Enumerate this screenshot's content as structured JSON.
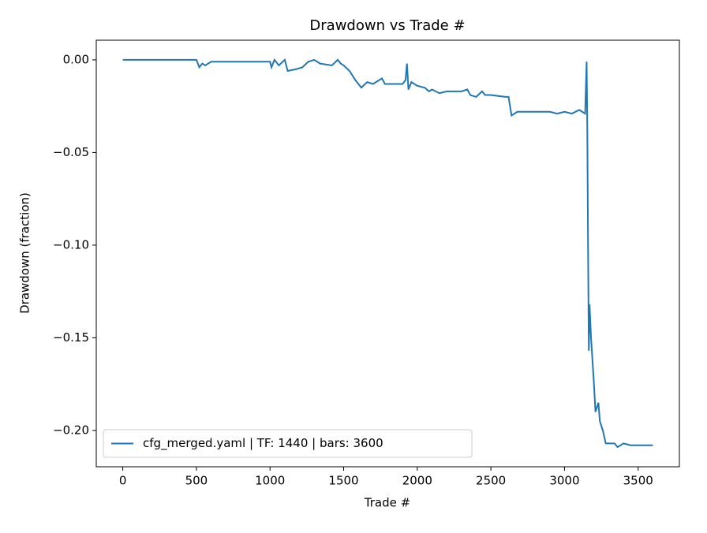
{
  "chart_data": {
    "type": "line",
    "title": "Drawdown vs Trade #",
    "xlabel": "Trade #",
    "ylabel": "Drawdown (fraction)",
    "x": [
      0,
      500,
      520,
      540,
      560,
      600,
      1000,
      1010,
      1030,
      1060,
      1100,
      1120,
      1180,
      1220,
      1260,
      1300,
      1340,
      1420,
      1460,
      1480,
      1500,
      1540,
      1580,
      1620,
      1660,
      1700,
      1740,
      1760,
      1780,
      1900,
      1920,
      1930,
      1940,
      1960,
      2000,
      2050,
      2080,
      2100,
      2150,
      2200,
      2300,
      2340,
      2360,
      2400,
      2440,
      2460,
      2500,
      2600,
      2620,
      2640,
      2680,
      2700,
      2800,
      2900,
      2950,
      3000,
      3050,
      3100,
      3120,
      3140,
      3150,
      3155,
      3160,
      3165,
      3170,
      3180,
      3200,
      3210,
      3230,
      3240,
      3260,
      3280,
      3340,
      3360,
      3400,
      3450,
      3600
    ],
    "series": [
      {
        "name": "cfg_merged.yaml | TF: 1440 | bars: 3600",
        "color": "#1f77b4",
        "values": [
          0,
          0,
          -0.004,
          -0.002,
          -0.003,
          -0.001,
          -0.001,
          -0.004,
          0,
          -0.003,
          0,
          -0.006,
          -0.005,
          -0.004,
          -0.001,
          0,
          -0.002,
          -0.003,
          0,
          -0.002,
          -0.003,
          -0.006,
          -0.011,
          -0.015,
          -0.012,
          -0.013,
          -0.011,
          -0.01,
          -0.013,
          -0.013,
          -0.011,
          -0.002,
          -0.016,
          -0.012,
          -0.014,
          -0.015,
          -0.017,
          -0.016,
          -0.018,
          -0.017,
          -0.017,
          -0.016,
          -0.019,
          -0.02,
          -0.017,
          -0.019,
          -0.019,
          -0.02,
          -0.02,
          -0.03,
          -0.028,
          -0.028,
          -0.028,
          -0.028,
          -0.029,
          -0.028,
          -0.029,
          -0.027,
          -0.028,
          -0.029,
          -0.001,
          -0.04,
          -0.104,
          -0.157,
          -0.132,
          -0.15,
          -0.175,
          -0.19,
          -0.185,
          -0.195,
          -0.2,
          -0.207,
          -0.207,
          -0.209,
          -0.207,
          -0.208,
          -0.208
        ]
      }
    ],
    "xlim": [
      -180,
      3780
    ],
    "ylim": [
      -0.2196,
      0.0106
    ],
    "xticks": [
      0,
      500,
      1000,
      1500,
      2000,
      2500,
      3000,
      3500
    ],
    "yticks": [
      {
        "value": 0,
        "label": "0.00"
      },
      {
        "value": -0.05,
        "label": "−0.05"
      },
      {
        "value": -0.1,
        "label": "−0.10"
      },
      {
        "value": -0.15,
        "label": "−0.15"
      },
      {
        "value": -0.2,
        "label": "−0.20"
      }
    ],
    "legend": "lower left",
    "grid": false
  }
}
